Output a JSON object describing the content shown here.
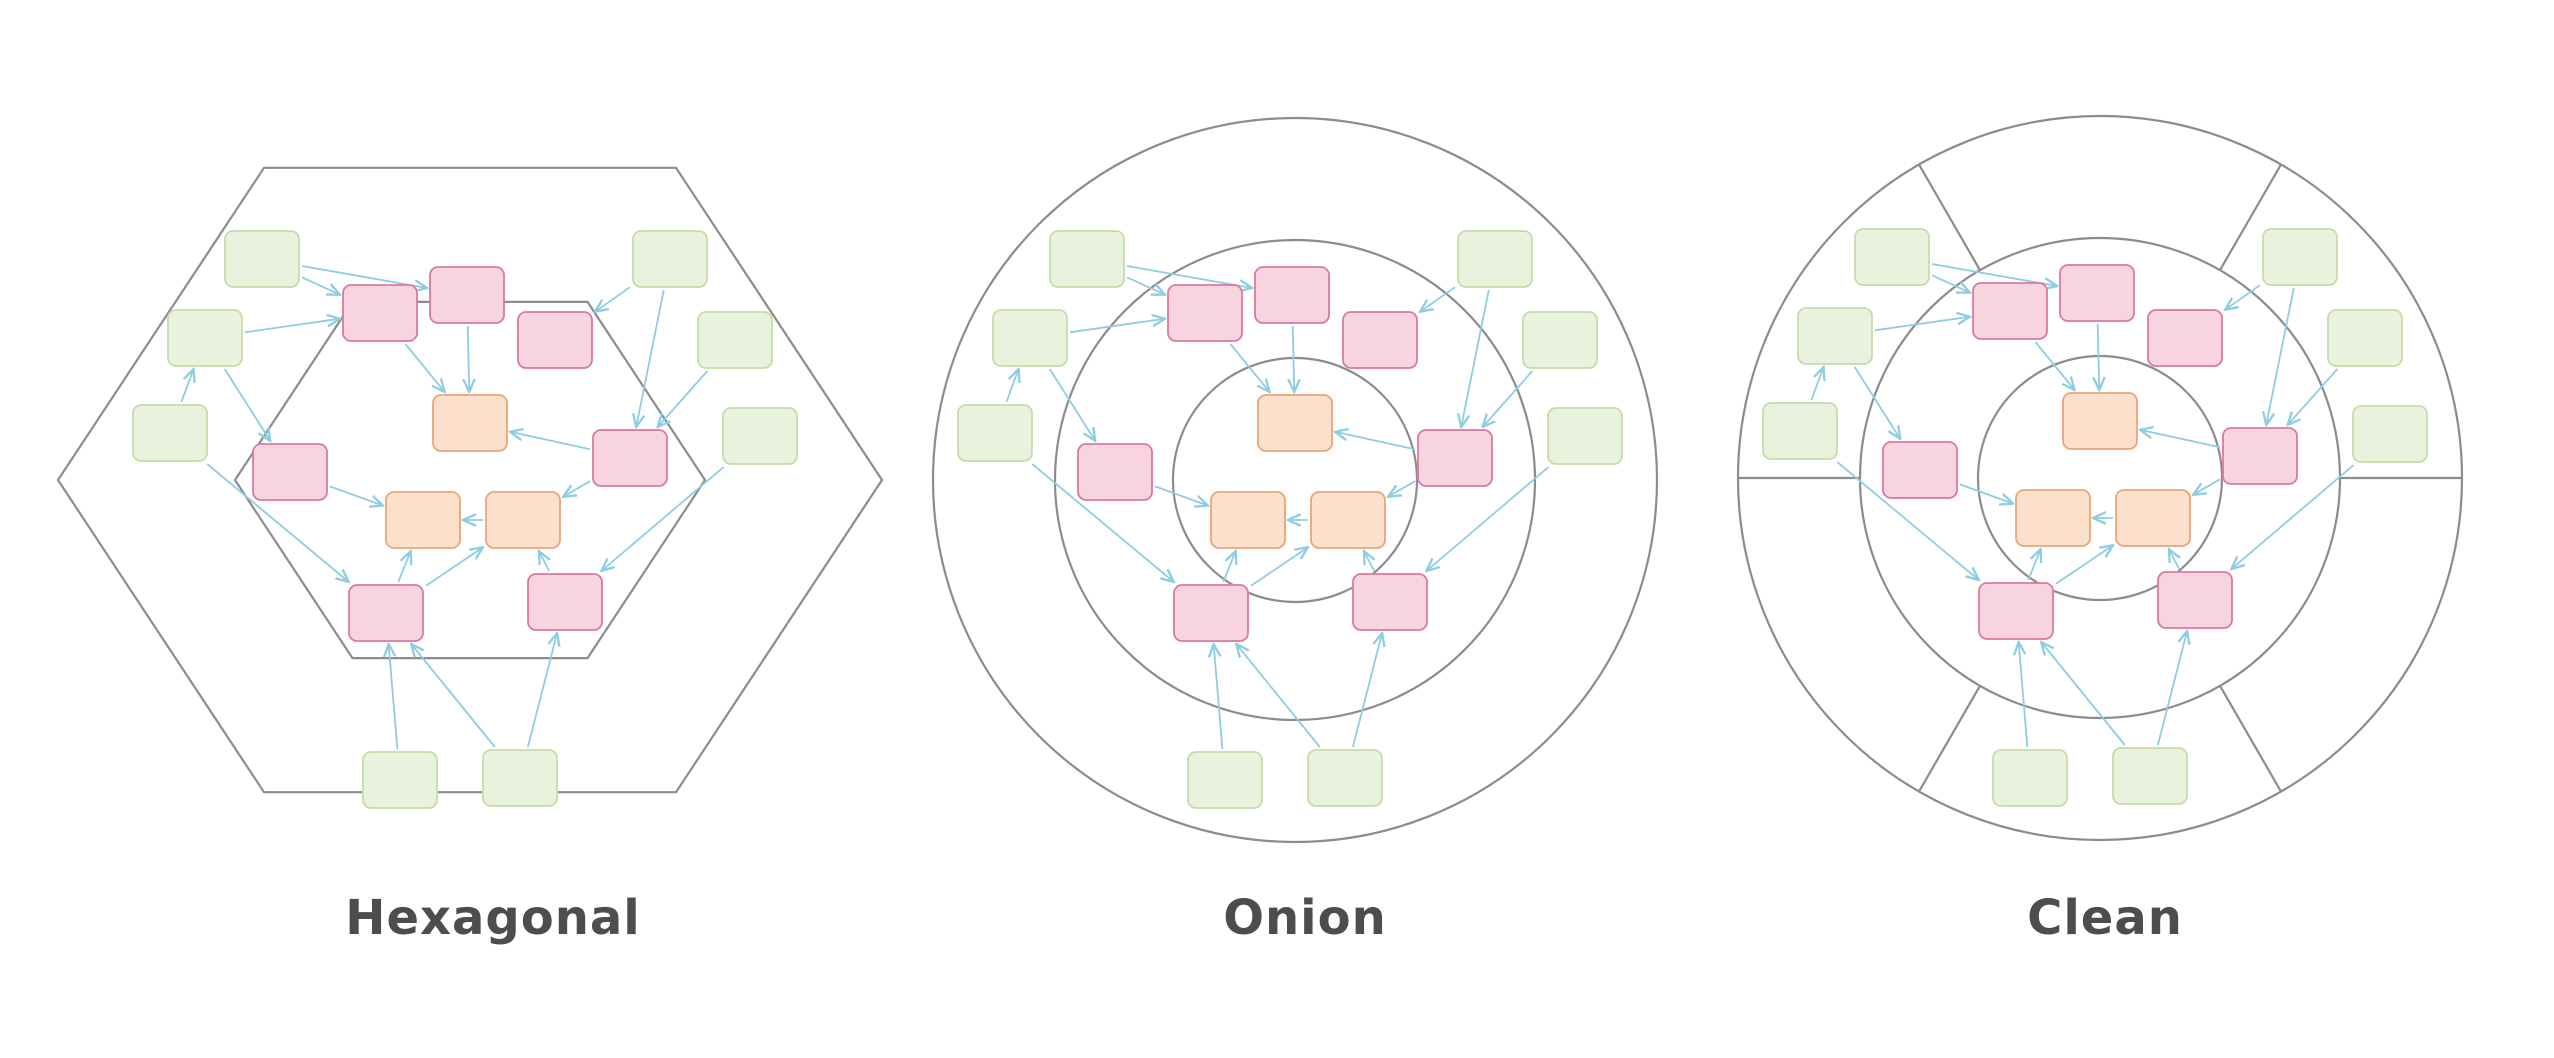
{
  "diagrams": [
    {
      "id": "hexagonal",
      "caption": "Hexagonal",
      "outer": "hexagon",
      "segments": false
    },
    {
      "id": "onion",
      "caption": "Onion",
      "outer": "rings",
      "segments": false
    },
    {
      "id": "clean",
      "caption": "Clean",
      "outer": "rings",
      "segments": true
    }
  ],
  "colors": {
    "outline": "#8c8c8c",
    "arrow": "#8fcde3",
    "adapter_fill": "#e9f2dc",
    "adapter_stroke": "#c8dcaa",
    "service_fill": "#f7d4e0",
    "service_stroke": "#d97a9c",
    "domain_fill": "#fde0cc",
    "domain_stroke": "#e8a57c",
    "caption": "#4d4d4d"
  }
}
